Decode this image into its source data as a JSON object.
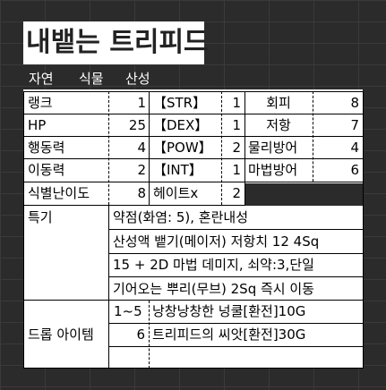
{
  "title": "내뱉는 트리피드",
  "tags": [
    "자연",
    "식물",
    "산성"
  ],
  "stats": {
    "rank_label": "랭크",
    "rank_value": "1",
    "str_label": "【STR】",
    "str_value": "1",
    "evasion_label": "회피",
    "evasion_value": "8",
    "hp_label": "HP",
    "hp_value": "25",
    "dex_label": "【DEX】",
    "dex_value": "1",
    "resist_label": "저항",
    "resist_value": "7",
    "action_label": "행동력",
    "action_value": "4",
    "pow_label": "【POW】",
    "pow_value": "2",
    "pdef_label": "물리방어",
    "pdef_value": "4",
    "move_label": "이동력",
    "move_value": "2",
    "int_label": "【INT】",
    "int_value": "1",
    "mdef_label": "마법방어",
    "mdef_value": "6",
    "identify_label": "식별난이도",
    "identify_value": "8",
    "hate_label": "헤이트x",
    "hate_value": "2"
  },
  "traits": {
    "label": "특기",
    "lines": [
      "약점(화염: 5),  혼란내성",
      "산성액 뱉기(메이저) 저항치 12 4Sq",
      " 15 + 2D 마법 데미지, 쇠약:3,단일",
      "기어오는 뿌리(무브) 2Sq 즉시 이동"
    ]
  },
  "drops": {
    "label": "드롭 아이템",
    "rows": [
      {
        "roll": "1~5",
        "item": "낭창낭창한 넝쿨[환전]10G"
      },
      {
        "roll": "6",
        "item": "트리피드의 씨앗[환전]30G"
      },
      {
        "roll": "",
        "item": ""
      }
    ]
  }
}
